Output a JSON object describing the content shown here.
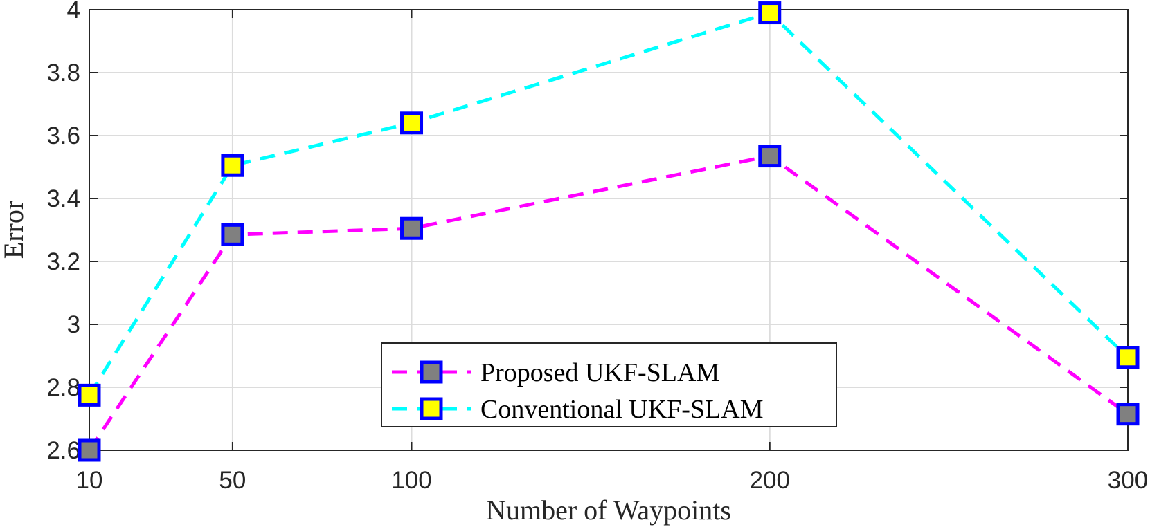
{
  "chart_data": {
    "type": "line",
    "title": "",
    "xlabel": "Number of Waypoints",
    "ylabel": "Error",
    "x": [
      10,
      50,
      100,
      200,
      300
    ],
    "xticks": [
      "10",
      "50",
      "100",
      "200",
      "300"
    ],
    "yticks": [
      "2.6",
      "2.8",
      "3",
      "3.2",
      "3.4",
      "3.6",
      "3.8",
      "4"
    ],
    "xlim": [
      10,
      300
    ],
    "ylim": [
      2.6,
      4.0
    ],
    "grid": true,
    "legend_position": "bottom-center",
    "series": [
      {
        "name": "Proposed UKF-SLAM",
        "values": [
          2.6,
          3.285,
          3.305,
          3.535,
          2.715
        ],
        "line_color": "#ff00ff",
        "marker_fill": "#808080",
        "marker_edge": "#0000ff",
        "line_style": "dashed",
        "marker": "square"
      },
      {
        "name": "Conventional UKF-SLAM",
        "values": [
          2.775,
          3.505,
          3.64,
          3.99,
          2.895
        ],
        "line_color": "#00ffff",
        "marker_fill": "#ffff00",
        "marker_edge": "#0000ff",
        "line_style": "dashed",
        "marker": "square"
      }
    ]
  }
}
